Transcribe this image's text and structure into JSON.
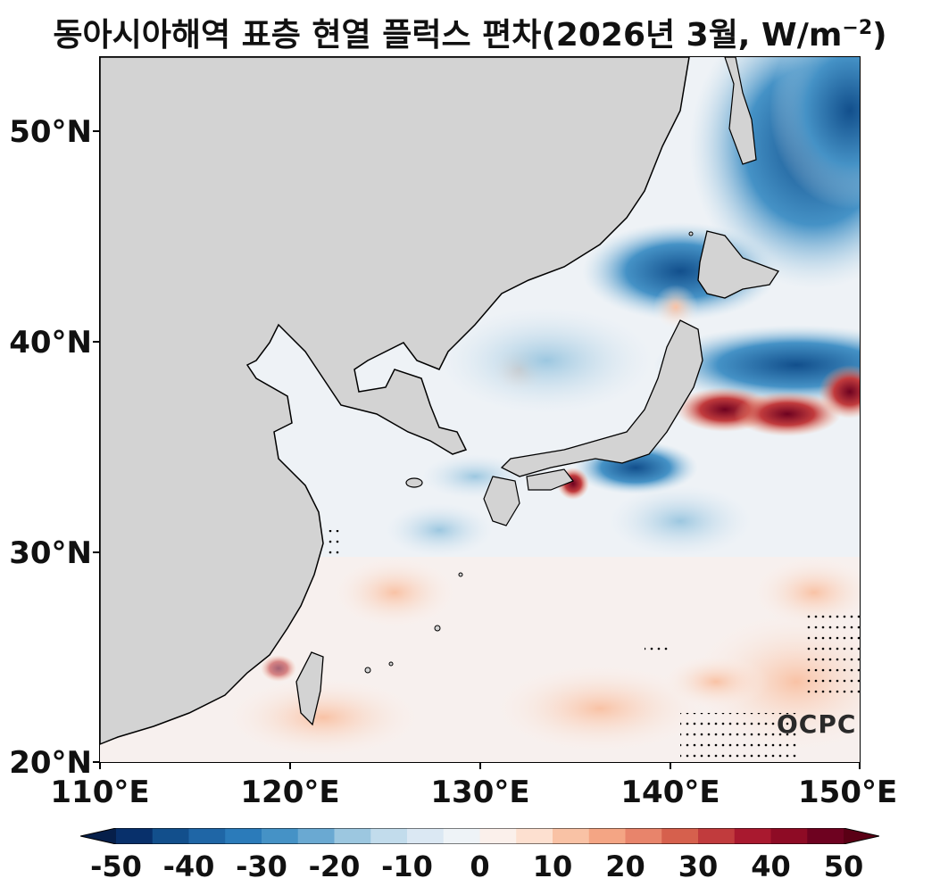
{
  "title": "동아시아해역 표층 현열 플럭스 편차(2026년 3월, W/m",
  "title_sup": "−2",
  "title_end": ")",
  "y_labels": [
    "50°N",
    "40°N",
    "30°N",
    "20°N"
  ],
  "x_labels": [
    "110°E",
    "120°E",
    "130°E",
    "140°E",
    "150°E"
  ],
  "logo_text": "OCPC",
  "colorbar": {
    "labels": [
      "-50",
      "-40",
      "-30",
      "-20",
      "-10",
      "0",
      "10",
      "20",
      "30",
      "40",
      "50"
    ],
    "colors": [
      "#08306b",
      "#124f8c",
      "#1f66a6",
      "#2b7bba",
      "#4592c6",
      "#6aa9d2",
      "#9cc7e0",
      "#c2dcec",
      "#dbe8f3",
      "#eef3f7",
      "#fbf0eb",
      "#fde0d0",
      "#f9c2a5",
      "#f4a584",
      "#e8846b",
      "#d6604d",
      "#c13b3d",
      "#a9192f",
      "#8e0b25",
      "#6e0220"
    ],
    "under_color": "#061f4a",
    "over_color": "#5a0015"
  },
  "land_color": "#d3d3d3"
}
